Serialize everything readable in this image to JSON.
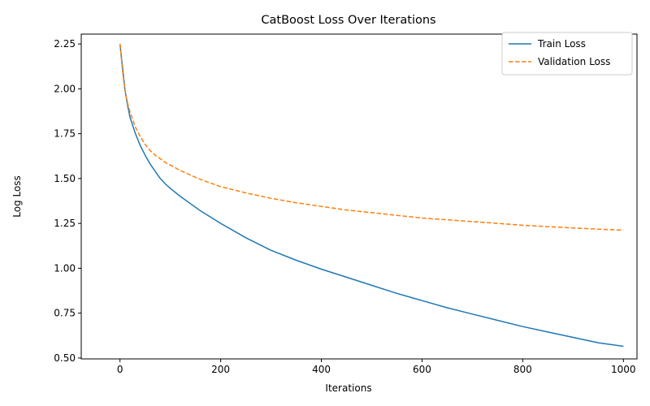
{
  "chart_data": {
    "type": "line",
    "title": "CatBoost Loss Over Iterations",
    "xlabel": "Iterations",
    "ylabel": "Log Loss",
    "xlim": [
      -77,
      1027
    ],
    "ylim": [
      0.495,
      2.305
    ],
    "xticks": [
      0,
      200,
      400,
      600,
      800,
      1000
    ],
    "xtick_labels": [
      "0",
      "200",
      "400",
      "600",
      "800",
      "1000"
    ],
    "yticks": [
      0.5,
      0.75,
      1.0,
      1.25,
      1.5,
      1.75,
      2.0,
      2.25
    ],
    "ytick_labels": [
      "0.50",
      "0.75",
      "1.00",
      "1.25",
      "1.50",
      "1.75",
      "2.00",
      "2.25"
    ],
    "grid": false,
    "legend_position": "top-right",
    "series": [
      {
        "name": "Train Loss",
        "color": "#1f77b4",
        "style": "solid",
        "x": [
          0,
          5,
          10,
          15,
          20,
          30,
          40,
          50,
          60,
          70,
          80,
          90,
          100,
          120,
          140,
          160,
          180,
          200,
          250,
          300,
          350,
          400,
          450,
          500,
          550,
          600,
          650,
          700,
          750,
          800,
          850,
          900,
          950,
          1000
        ],
        "y": [
          2.25,
          2.12,
          1.99,
          1.91,
          1.84,
          1.755,
          1.685,
          1.63,
          1.58,
          1.54,
          1.5,
          1.47,
          1.445,
          1.4,
          1.36,
          1.32,
          1.285,
          1.25,
          1.17,
          1.1,
          1.045,
          0.995,
          0.95,
          0.905,
          0.86,
          0.82,
          0.78,
          0.745,
          0.71,
          0.675,
          0.645,
          0.615,
          0.585,
          0.565
        ]
      },
      {
        "name": "Validation Loss",
        "color": "#ff7f0e",
        "style": "dashed",
        "x": [
          0,
          5,
          10,
          15,
          20,
          30,
          40,
          50,
          60,
          70,
          80,
          90,
          100,
          120,
          140,
          160,
          180,
          200,
          250,
          300,
          350,
          400,
          450,
          500,
          550,
          600,
          650,
          700,
          750,
          800,
          850,
          900,
          950,
          1000
        ],
        "y": [
          2.25,
          2.1,
          1.99,
          1.92,
          1.87,
          1.79,
          1.735,
          1.69,
          1.655,
          1.63,
          1.61,
          1.59,
          1.575,
          1.545,
          1.52,
          1.495,
          1.475,
          1.455,
          1.42,
          1.39,
          1.365,
          1.345,
          1.325,
          1.31,
          1.295,
          1.28,
          1.27,
          1.26,
          1.25,
          1.24,
          1.232,
          1.225,
          1.218,
          1.212
        ]
      }
    ]
  }
}
